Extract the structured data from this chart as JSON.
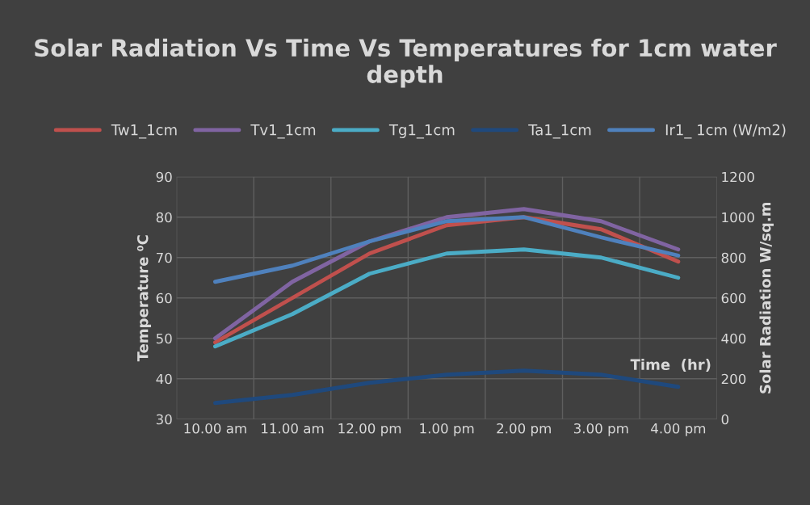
{
  "chart_data": {
    "type": "line",
    "title": "Solar Radiation Vs Time Vs Temperatures for 1cm water depth",
    "xlabel": "Time  (hr)",
    "ylabel": "Temperature ⁰C",
    "y2label": "Solar Radiation W/sq.m",
    "categories": [
      "10.00 am",
      "11.00 am",
      "12.00 pm",
      "1.00 pm",
      "2.00 pm",
      "3.00 pm",
      "4.00 pm"
    ],
    "series": [
      {
        "name": "Tw1_1cm",
        "color": "#c0504d",
        "values": [
          49,
          60,
          71,
          78,
          80,
          77,
          69
        ]
      },
      {
        "name": "Tv1_1cm",
        "color": "#8064a2",
        "values": [
          50,
          64,
          74,
          80,
          82,
          79,
          72
        ]
      },
      {
        "name": "Tg1_1cm",
        "color": "#4bacc6",
        "values": [
          48,
          56,
          66,
          71,
          72,
          70,
          65
        ]
      },
      {
        "name": "Ta1_1cm",
        "color": "#1f497d",
        "values": [
          34,
          36,
          39,
          41,
          42,
          41,
          38
        ]
      },
      {
        "name": "Ir1_ 1cm (W/m2)",
        "color": "#4f81bd",
        "axis": "y2",
        "values": [
          680,
          760,
          880,
          980,
          1000,
          900,
          810
        ]
      }
    ],
    "ylim": [
      30,
      90
    ],
    "yticks": [
      30,
      40,
      50,
      60,
      70,
      80,
      90
    ],
    "y2lim": [
      0,
      1200
    ],
    "y2ticks": [
      0,
      200,
      400,
      600,
      800,
      1000,
      1200
    ],
    "grid": true,
    "legend": "top",
    "marker": "none",
    "line_style": "solid"
  }
}
